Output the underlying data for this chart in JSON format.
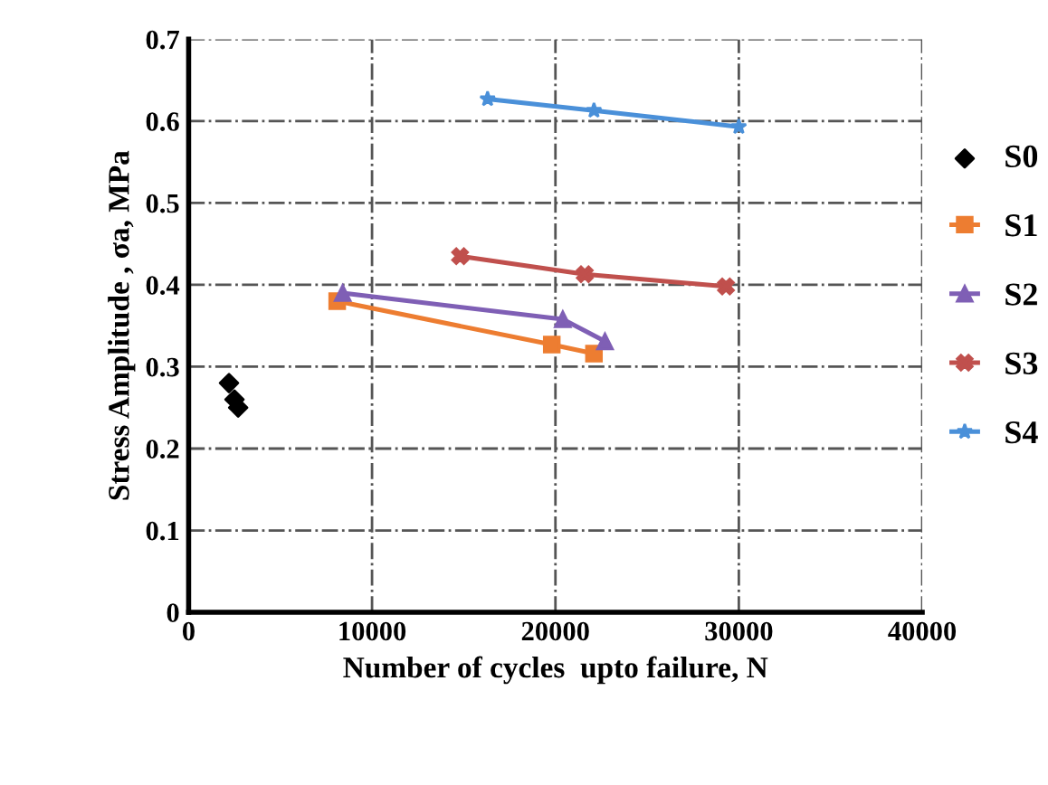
{
  "chart_data": {
    "type": "line",
    "xlabel": "Number of cycles  upto failure, N",
    "ylabel": "Stress Amplitude , σa, MPa",
    "xlim": [
      0,
      40000
    ],
    "xticks": [
      0,
      10000,
      20000,
      30000,
      40000
    ],
    "ylim": [
      0,
      0.7
    ],
    "yticks": [
      0,
      0.1,
      0.2,
      0.3,
      0.4,
      0.5,
      0.6,
      0.7
    ],
    "grid": true,
    "legend": "right",
    "series": [
      {
        "name": "S0",
        "type": "scatter",
        "color": "#000000",
        "marker": "diamond",
        "x": [
          2200,
          2500,
          2700
        ],
        "values": [
          0.28,
          0.26,
          0.25
        ]
      },
      {
        "name": "S1",
        "color": "#ed7d31",
        "marker": "square",
        "x": [
          8100,
          19800,
          22100
        ],
        "values": [
          0.38,
          0.327,
          0.316
        ]
      },
      {
        "name": "S2",
        "color": "#7f5fb5",
        "marker": "triangle",
        "x": [
          8400,
          20400,
          22700
        ],
        "values": [
          0.39,
          0.358,
          0.331
        ]
      },
      {
        "name": "S3",
        "color": "#c0504d",
        "marker": "cross",
        "x": [
          14800,
          21600,
          29300
        ],
        "values": [
          0.435,
          0.413,
          0.398
        ]
      },
      {
        "name": "S4",
        "color": "#4a90d9",
        "marker": "star",
        "x": [
          16300,
          22100,
          30000
        ],
        "values": [
          0.627,
          0.613,
          0.593
        ]
      }
    ]
  }
}
